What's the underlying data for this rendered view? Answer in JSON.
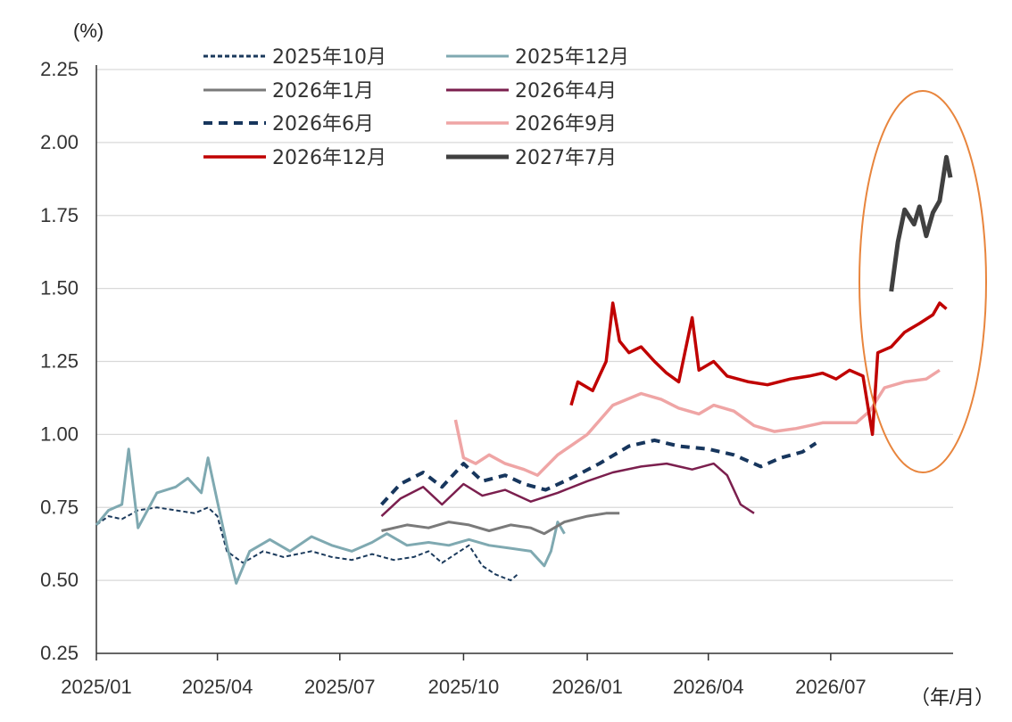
{
  "chart_data": {
    "type": "line",
    "y_unit_label": "(%)",
    "x_unit_label": "（年/月）",
    "ylim": [
      0.25,
      2.25
    ],
    "yticks": [
      "0.25",
      "0.50",
      "0.75",
      "1.00",
      "1.25",
      "1.50",
      "1.75",
      "2.00",
      "2.25"
    ],
    "xlim": [
      "2025-01-01",
      "2026-09-30"
    ],
    "xticks": [
      {
        "date": "2025-01-01",
        "label": "2025/01"
      },
      {
        "date": "2025-04-01",
        "label": "2025/04"
      },
      {
        "date": "2025-07-01",
        "label": "2025/07"
      },
      {
        "date": "2025-10-01",
        "label": "2025/10"
      },
      {
        "date": "2026-01-01",
        "label": "2026/01"
      },
      {
        "date": "2026-04-01",
        "label": "2026/04"
      },
      {
        "date": "2026-07-01",
        "label": "2026/07"
      }
    ],
    "grid": "horizontal",
    "legend_position": "top",
    "highlight": {
      "shape": "ellipse",
      "color": "#E8853D",
      "covers": [
        "2026-07-15",
        "2026-09-30"
      ]
    },
    "series": [
      {
        "name": "2025年10月",
        "color": "#1B3A5C",
        "style": "dotted",
        "width": 2,
        "points": [
          [
            "2025-01-01",
            0.69
          ],
          [
            "2025-01-10",
            0.72
          ],
          [
            "2025-01-20",
            0.71
          ],
          [
            "2025-02-01",
            0.74
          ],
          [
            "2025-02-15",
            0.75
          ],
          [
            "2025-03-01",
            0.74
          ],
          [
            "2025-03-15",
            0.73
          ],
          [
            "2025-03-25",
            0.75
          ],
          [
            "2025-04-01",
            0.72
          ],
          [
            "2025-04-08",
            0.6
          ],
          [
            "2025-04-20",
            0.56
          ],
          [
            "2025-05-05",
            0.6
          ],
          [
            "2025-05-20",
            0.58
          ],
          [
            "2025-06-10",
            0.6
          ],
          [
            "2025-06-25",
            0.58
          ],
          [
            "2025-07-10",
            0.57
          ],
          [
            "2025-07-25",
            0.59
          ],
          [
            "2025-08-10",
            0.57
          ],
          [
            "2025-08-25",
            0.58
          ],
          [
            "2025-09-05",
            0.6
          ],
          [
            "2025-09-15",
            0.56
          ],
          [
            "2025-09-25",
            0.59
          ],
          [
            "2025-10-05",
            0.62
          ],
          [
            "2025-10-15",
            0.55
          ],
          [
            "2025-10-25",
            0.52
          ],
          [
            "2025-11-05",
            0.5
          ],
          [
            "2025-11-10",
            0.52
          ]
        ]
      },
      {
        "name": "2025年12月",
        "color": "#7FA9B1",
        "style": "solid",
        "width": 3,
        "points": [
          [
            "2025-01-01",
            0.69
          ],
          [
            "2025-01-10",
            0.74
          ],
          [
            "2025-01-20",
            0.76
          ],
          [
            "2025-01-25",
            0.95
          ],
          [
            "2025-02-01",
            0.68
          ],
          [
            "2025-02-15",
            0.8
          ],
          [
            "2025-03-01",
            0.82
          ],
          [
            "2025-03-10",
            0.85
          ],
          [
            "2025-03-20",
            0.8
          ],
          [
            "2025-03-25",
            0.92
          ],
          [
            "2025-04-01",
            0.77
          ],
          [
            "2025-04-08",
            0.62
          ],
          [
            "2025-04-15",
            0.49
          ],
          [
            "2025-04-25",
            0.6
          ],
          [
            "2025-05-10",
            0.64
          ],
          [
            "2025-05-25",
            0.6
          ],
          [
            "2025-06-10",
            0.65
          ],
          [
            "2025-06-25",
            0.62
          ],
          [
            "2025-07-10",
            0.6
          ],
          [
            "2025-07-25",
            0.63
          ],
          [
            "2025-08-05",
            0.66
          ],
          [
            "2025-08-20",
            0.62
          ],
          [
            "2025-09-05",
            0.63
          ],
          [
            "2025-09-20",
            0.62
          ],
          [
            "2025-10-05",
            0.64
          ],
          [
            "2025-10-20",
            0.62
          ],
          [
            "2025-11-05",
            0.61
          ],
          [
            "2025-11-20",
            0.6
          ],
          [
            "2025-11-30",
            0.55
          ],
          [
            "2025-12-05",
            0.6
          ],
          [
            "2025-12-10",
            0.7
          ],
          [
            "2025-12-15",
            0.66
          ]
        ]
      },
      {
        "name": "2026年1月",
        "color": "#7A7A7A",
        "style": "solid",
        "width": 3,
        "points": [
          [
            "2025-08-01",
            0.67
          ],
          [
            "2025-08-20",
            0.69
          ],
          [
            "2025-09-05",
            0.68
          ],
          [
            "2025-09-20",
            0.7
          ],
          [
            "2025-10-05",
            0.69
          ],
          [
            "2025-10-20",
            0.67
          ],
          [
            "2025-11-05",
            0.69
          ],
          [
            "2025-11-20",
            0.68
          ],
          [
            "2025-11-30",
            0.66
          ],
          [
            "2025-12-15",
            0.7
          ],
          [
            "2026-01-01",
            0.72
          ],
          [
            "2026-01-15",
            0.73
          ],
          [
            "2026-01-25",
            0.73
          ]
        ]
      },
      {
        "name": "2026年4月",
        "color": "#7B1F4E",
        "style": "solid",
        "width": 2.5,
        "points": [
          [
            "2025-08-01",
            0.72
          ],
          [
            "2025-08-15",
            0.78
          ],
          [
            "2025-09-01",
            0.82
          ],
          [
            "2025-09-15",
            0.76
          ],
          [
            "2025-10-01",
            0.83
          ],
          [
            "2025-10-15",
            0.79
          ],
          [
            "2025-11-01",
            0.81
          ],
          [
            "2025-11-20",
            0.77
          ],
          [
            "2025-12-10",
            0.8
          ],
          [
            "2026-01-01",
            0.84
          ],
          [
            "2026-01-20",
            0.87
          ],
          [
            "2026-02-10",
            0.89
          ],
          [
            "2026-03-01",
            0.9
          ],
          [
            "2026-03-20",
            0.88
          ],
          [
            "2026-04-05",
            0.9
          ],
          [
            "2026-04-15",
            0.86
          ],
          [
            "2026-04-25",
            0.76
          ],
          [
            "2026-05-05",
            0.73
          ]
        ]
      },
      {
        "name": "2026年6月",
        "color": "#17365D",
        "style": "dashed",
        "width": 4,
        "points": [
          [
            "2025-08-01",
            0.76
          ],
          [
            "2025-08-15",
            0.83
          ],
          [
            "2025-09-01",
            0.87
          ],
          [
            "2025-09-15",
            0.82
          ],
          [
            "2025-10-01",
            0.9
          ],
          [
            "2025-10-15",
            0.84
          ],
          [
            "2025-11-01",
            0.86
          ],
          [
            "2025-11-15",
            0.83
          ],
          [
            "2025-12-01",
            0.81
          ],
          [
            "2025-12-20",
            0.85
          ],
          [
            "2026-01-10",
            0.9
          ],
          [
            "2026-02-01",
            0.96
          ],
          [
            "2026-02-20",
            0.98
          ],
          [
            "2026-03-10",
            0.96
          ],
          [
            "2026-04-01",
            0.95
          ],
          [
            "2026-04-20",
            0.93
          ],
          [
            "2026-05-10",
            0.89
          ],
          [
            "2026-05-25",
            0.92
          ],
          [
            "2026-06-10",
            0.94
          ],
          [
            "2026-06-20",
            0.97
          ]
        ]
      },
      {
        "name": "2026年9月",
        "color": "#EFA5A5",
        "style": "solid",
        "width": 3.5,
        "points": [
          [
            "2025-09-25",
            1.05
          ],
          [
            "2025-10-01",
            0.92
          ],
          [
            "2025-10-10",
            0.9
          ],
          [
            "2025-10-20",
            0.93
          ],
          [
            "2025-11-01",
            0.9
          ],
          [
            "2025-11-15",
            0.88
          ],
          [
            "2025-11-25",
            0.86
          ],
          [
            "2025-12-10",
            0.93
          ],
          [
            "2026-01-01",
            1.0
          ],
          [
            "2026-01-20",
            1.1
          ],
          [
            "2026-02-10",
            1.14
          ],
          [
            "2026-02-25",
            1.12
          ],
          [
            "2026-03-10",
            1.09
          ],
          [
            "2026-03-25",
            1.07
          ],
          [
            "2026-04-05",
            1.1
          ],
          [
            "2026-04-20",
            1.08
          ],
          [
            "2026-05-05",
            1.03
          ],
          [
            "2026-05-20",
            1.01
          ],
          [
            "2026-06-05",
            1.02
          ],
          [
            "2026-06-25",
            1.04
          ],
          [
            "2026-07-20",
            1.04
          ],
          [
            "2026-07-30",
            1.08
          ],
          [
            "2026-08-10",
            1.16
          ],
          [
            "2026-08-25",
            1.18
          ],
          [
            "2026-09-10",
            1.19
          ],
          [
            "2026-09-20",
            1.22
          ]
        ]
      },
      {
        "name": "2026年12月",
        "color": "#C00000",
        "style": "solid",
        "width": 3.5,
        "points": [
          [
            "2025-12-20",
            1.1
          ],
          [
            "2025-12-25",
            1.18
          ],
          [
            "2026-01-05",
            1.15
          ],
          [
            "2026-01-10",
            1.2
          ],
          [
            "2026-01-15",
            1.25
          ],
          [
            "2026-01-20",
            1.45
          ],
          [
            "2026-01-25",
            1.32
          ],
          [
            "2026-02-01",
            1.28
          ],
          [
            "2026-02-10",
            1.3
          ],
          [
            "2026-02-20",
            1.25
          ],
          [
            "2026-03-01",
            1.21
          ],
          [
            "2026-03-10",
            1.18
          ],
          [
            "2026-03-20",
            1.4
          ],
          [
            "2026-03-25",
            1.22
          ],
          [
            "2026-04-05",
            1.25
          ],
          [
            "2026-04-15",
            1.2
          ],
          [
            "2026-05-01",
            1.18
          ],
          [
            "2026-05-15",
            1.17
          ],
          [
            "2026-06-01",
            1.19
          ],
          [
            "2026-06-15",
            1.2
          ],
          [
            "2026-06-25",
            1.21
          ],
          [
            "2026-07-05",
            1.19
          ],
          [
            "2026-07-15",
            1.22
          ],
          [
            "2026-07-25",
            1.2
          ],
          [
            "2026-08-01",
            1.0
          ],
          [
            "2026-08-05",
            1.28
          ],
          [
            "2026-08-15",
            1.3
          ],
          [
            "2026-08-25",
            1.35
          ],
          [
            "2026-09-05",
            1.38
          ],
          [
            "2026-09-15",
            1.41
          ],
          [
            "2026-09-20",
            1.45
          ],
          [
            "2026-09-25",
            1.43
          ]
        ]
      },
      {
        "name": "2027年7月",
        "color": "#404040",
        "style": "solid",
        "width": 5,
        "points": [
          [
            "2026-08-15",
            1.49
          ],
          [
            "2026-08-20",
            1.66
          ],
          [
            "2026-08-25",
            1.77
          ],
          [
            "2026-09-01",
            1.72
          ],
          [
            "2026-09-05",
            1.78
          ],
          [
            "2026-09-10",
            1.68
          ],
          [
            "2026-09-15",
            1.76
          ],
          [
            "2026-09-20",
            1.8
          ],
          [
            "2026-09-25",
            1.95
          ],
          [
            "2026-09-28",
            1.88
          ]
        ]
      }
    ]
  }
}
